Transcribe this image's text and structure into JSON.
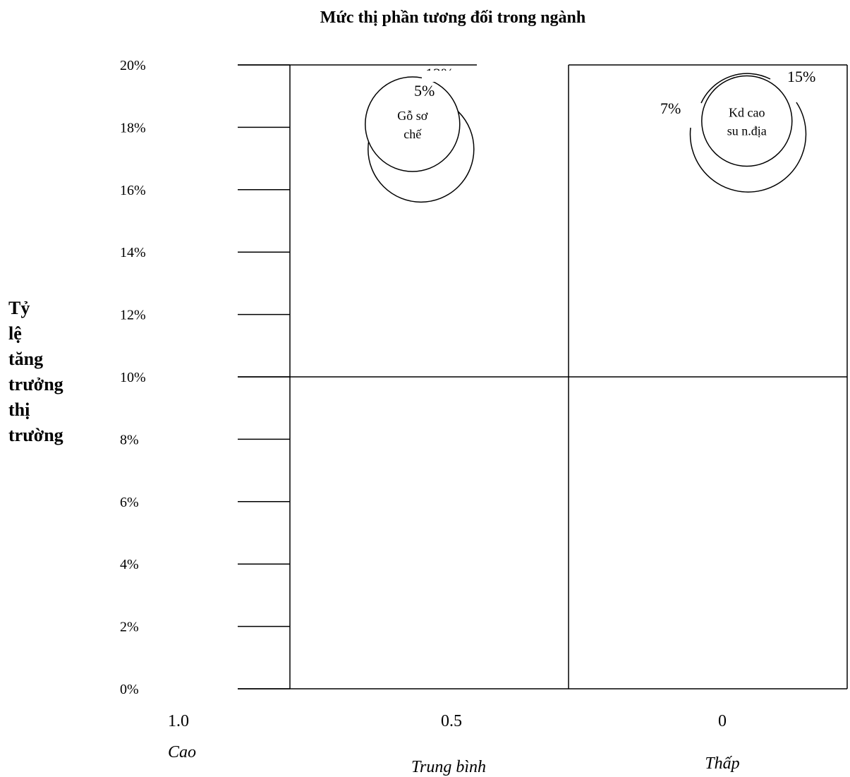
{
  "chart_data": {
    "type": "scatter",
    "title": "Mức thị phần tương đối trong ngành",
    "ylabel_lines": [
      "Tỷ",
      "lệ",
      "tăng",
      "trưởng",
      "thị",
      "trường"
    ],
    "y_ticks": [
      "20%",
      "18%",
      "16%",
      "14%",
      "12%",
      "10%",
      "8%",
      "6%",
      "4%",
      "2%",
      "0%"
    ],
    "ylim": [
      0,
      20
    ],
    "x_ticks": [
      {
        "value": "1.0",
        "sub": "Cao"
      },
      {
        "value": "0.5",
        "sub": "Trung bình"
      },
      {
        "value": "0",
        "sub": "Thấp"
      }
    ],
    "xlim": [
      1.0,
      0
    ],
    "quadrant_split": {
      "x": 0.5,
      "y": 10
    },
    "bubbles": [
      {
        "name": "Gỗ sơ chế",
        "label_lines": [
          "Gỗ sơ",
          "chế"
        ],
        "x": 0.78,
        "y": 18.1,
        "outer_y": 17.3,
        "inner_pct": "5%",
        "outer_pct": "12%"
      },
      {
        "name": "Kd cao su n.địa",
        "label_lines": [
          "Kd cao",
          "su n.địa"
        ],
        "x": 0.18,
        "y": 18.2,
        "outer_y": 18.0,
        "inner_pct": "7%",
        "outer_pct": "15%"
      }
    ]
  }
}
